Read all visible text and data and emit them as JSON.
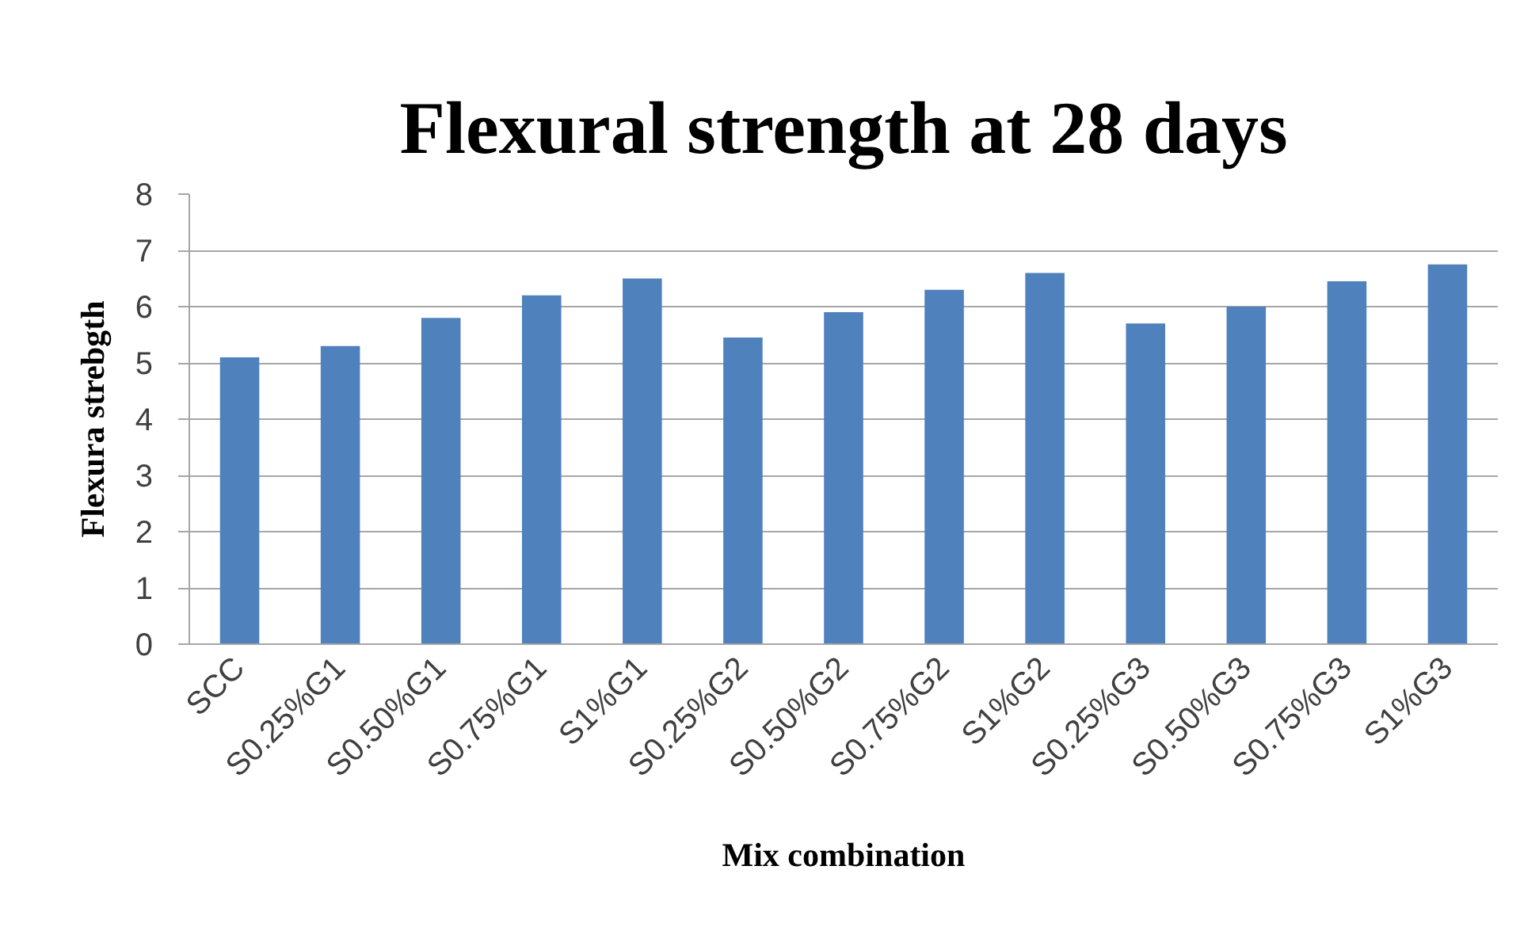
{
  "chart_data": {
    "type": "bar",
    "title": "Flexural strength at 28 days",
    "xlabel": "Mix combination",
    "ylabel": "Flexura strebgth",
    "categories": [
      "SCC",
      "S0.25%G1",
      "S0.50%G1",
      "S0.75%G1",
      "S1%G1",
      "S0.25%G2",
      "S0.50%G2",
      "S0.75%G2",
      "S1%G2",
      "S0.25%G3",
      "S0.50%G3",
      "S0.75%G3",
      "S1%G3"
    ],
    "values": [
      5.1,
      5.3,
      5.8,
      6.2,
      6.5,
      5.45,
      5.9,
      6.3,
      6.6,
      5.7,
      6.0,
      6.45,
      6.75
    ],
    "color": "#4f81bd",
    "ylim": [
      0,
      8
    ],
    "yticks": [
      0,
      1,
      2,
      3,
      4,
      5,
      6,
      7,
      8
    ],
    "grid": "y"
  }
}
